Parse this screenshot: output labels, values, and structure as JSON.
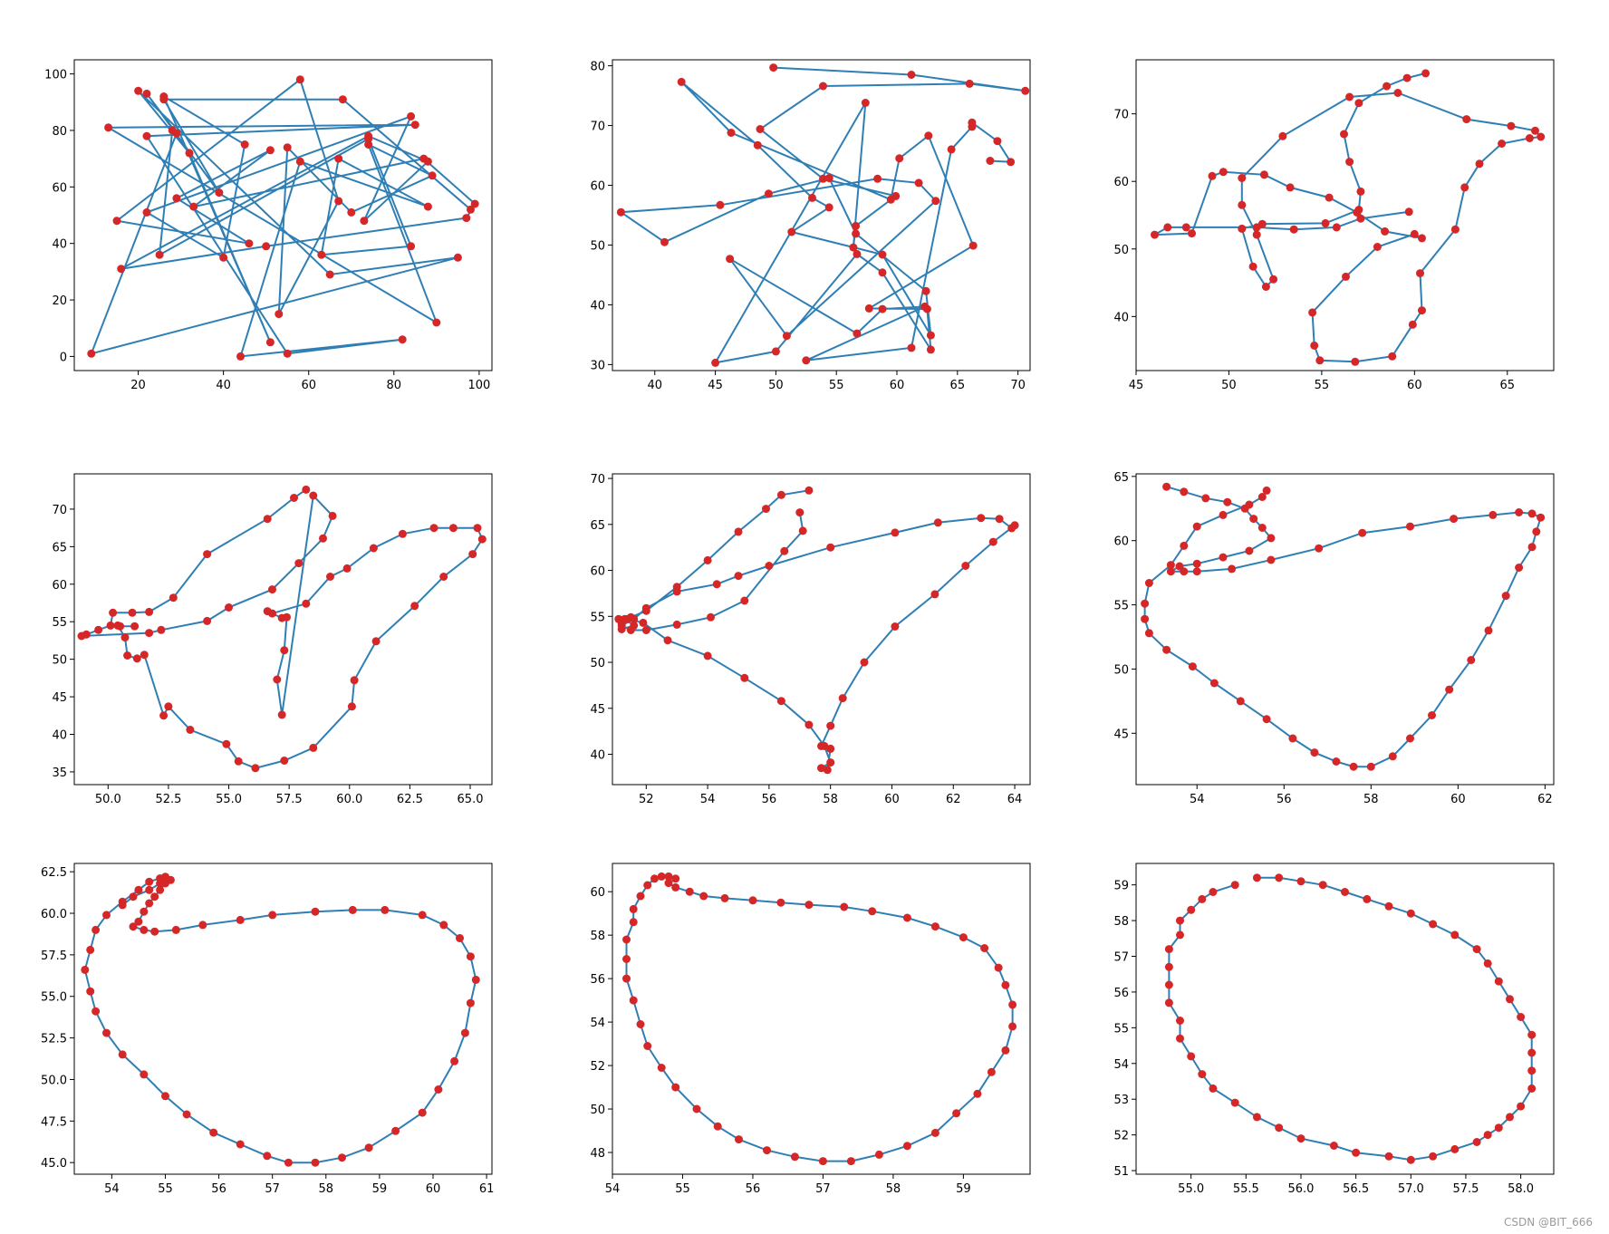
{
  "figure": {
    "watermark": "CSDN @BIT_666"
  },
  "style": {
    "line_color": "#2f7fb5",
    "point_color": "#d62728"
  },
  "chart_data": [
    {
      "type": "line",
      "xlim": [
        5,
        103
      ],
      "ylim": [
        -5,
        105
      ],
      "xticks": [
        20,
        40,
        60,
        80,
        100
      ],
      "yticks": [
        0,
        20,
        40,
        60,
        80,
        100
      ],
      "x": [
        98,
        68,
        26,
        39,
        22,
        29,
        9,
        95,
        65,
        20,
        32,
        51,
        26,
        45,
        40,
        22,
        84,
        73,
        88,
        74,
        16,
        50,
        97,
        99,
        87,
        33,
        51,
        29,
        46,
        15,
        58,
        67,
        53,
        55,
        70,
        89,
        74,
        90,
        13,
        85,
        22,
        55,
        82,
        44,
        58,
        88,
        67,
        63,
        84,
        74,
        25,
        28
      ],
      "y": [
        52,
        91,
        91,
        58,
        93,
        79,
        1,
        35,
        29,
        94,
        72,
        5,
        92,
        75,
        35,
        51,
        85,
        48,
        69,
        78,
        31,
        39,
        49,
        54,
        70,
        53,
        73,
        56,
        40,
        48,
        98,
        55,
        15,
        74,
        51,
        64,
        75,
        12,
        81,
        82,
        78,
        1,
        6,
        0,
        69,
        53,
        70,
        36,
        39,
        77,
        36,
        80
      ]
    },
    {
      "type": "line",
      "xlim": [
        36.5,
        71
      ],
      "ylim": [
        29,
        81
      ],
      "xticks": [
        40,
        45,
        50,
        55,
        60,
        65,
        70
      ],
      "yticks": [
        30,
        40,
        50,
        60,
        70,
        80
      ],
      "x": [
        49.8,
        61.2,
        70.6,
        66,
        53.9,
        48.7,
        53.9,
        59.9,
        56.6,
        56.4,
        57.4,
        45,
        50,
        56.7,
        58.8,
        62.8,
        62.5,
        57.7,
        66.3,
        62.6,
        60.2,
        59.5,
        46.3,
        42.2,
        48.5,
        53,
        54.4,
        51.3,
        58.8,
        62.8,
        62.4,
        56.6,
        54.4,
        49.4,
        40.8,
        37.2,
        45.4,
        58.4,
        61.8,
        63.2,
        50.9,
        46.2,
        56.7,
        58.8,
        62.3,
        52.5,
        61.2,
        64.5,
        66.2,
        66.2,
        68.3,
        69.4,
        67.7
      ],
      "y": [
        79.7,
        78.5,
        75.8,
        77,
        76.6,
        69.4,
        61.1,
        58.2,
        53.2,
        49.6,
        73.8,
        30.3,
        32.2,
        48.5,
        45.4,
        32.5,
        39.3,
        39.4,
        49.9,
        68.3,
        64.5,
        57.6,
        68.8,
        77.3,
        66.7,
        57.9,
        56.3,
        52.2,
        48.4,
        34.9,
        42.3,
        51.9,
        61.2,
        58.6,
        50.5,
        55.5,
        56.7,
        61.1,
        60.4,
        57.4,
        34.8,
        47.7,
        35.2,
        39.3,
        39.7,
        30.7,
        32.8,
        66,
        69.8,
        70.5,
        67.4,
        63.9,
        64.1
      ]
    },
    {
      "type": "line",
      "xlim": [
        45,
        67.5
      ],
      "ylim": [
        32,
        78
      ],
      "xticks": [
        45,
        50,
        55,
        60,
        65
      ],
      "yticks": [
        40,
        50,
        60,
        70
      ],
      "x": [
        60.6,
        59.6,
        58.5,
        57,
        56.2,
        56.5,
        57.1,
        57,
        55.2,
        51.8,
        50.7,
        51.3,
        52,
        52.4,
        51.5,
        50.7,
        50.7,
        52.9,
        56.5,
        59.1,
        62.8,
        65.2,
        66.5,
        66.8,
        66.2,
        64.7,
        63.5,
        62.7,
        62.2,
        60.3,
        60.4,
        59.9,
        58.8,
        56.8,
        54.9,
        54.6,
        54.5,
        56.3,
        58,
        60,
        60.4,
        58.4,
        56.9,
        55.4,
        53.3,
        51.9,
        49.7,
        49.1,
        48,
        46,
        46.7,
        47.7,
        51.5,
        53.5,
        55.8,
        57.1,
        59.7
      ],
      "y": [
        76,
        75.3,
        74.1,
        71.6,
        67,
        62.9,
        58.5,
        55.8,
        53.8,
        53.7,
        53,
        47.4,
        44.4,
        45.5,
        52.1,
        56.5,
        60.5,
        66.7,
        72.5,
        73.1,
        69.2,
        68.2,
        67.5,
        66.6,
        66.4,
        65.6,
        62.6,
        59.1,
        52.9,
        46.4,
        40.9,
        38.8,
        34.1,
        33.3,
        33.5,
        35.7,
        40.6,
        45.9,
        50.3,
        52.2,
        51.6,
        52.6,
        55.4,
        57.6,
        59.1,
        61,
        61.4,
        60.8,
        52.3,
        52.1,
        53.2,
        53.2,
        53.2,
        52.9,
        53.2,
        54.5,
        55.5
      ]
    },
    {
      "type": "line",
      "xlim": [
        48.6,
        65.9
      ],
      "ylim": [
        33.3,
        74.7
      ],
      "xticks": [
        50,
        52.5,
        55,
        57.5,
        60,
        62.5,
        65
      ],
      "yticks": [
        35,
        40,
        45,
        50,
        55,
        60,
        65,
        70
      ],
      "x": [
        58.2,
        57.7,
        56.6,
        54.1,
        52.7,
        51.7,
        51,
        50.2,
        50.1,
        49.6,
        49.1,
        48.9,
        51.7,
        52.2,
        54.1,
        55,
        56.8,
        57.9,
        58.9,
        59.3,
        58.5,
        57.2,
        57,
        57.3,
        57.4,
        57.2,
        56.6,
        56.8,
        58.2,
        59.2,
        59.9,
        61,
        62.2,
        63.5,
        64.3,
        65.3,
        65.5,
        65.1,
        63.9,
        62.7,
        61.1,
        60.2,
        60.1,
        58.5,
        57.3,
        56.1,
        55.4,
        54.9,
        53.4,
        52.5,
        52.3,
        51.5,
        51.2,
        50.8,
        50.7,
        50.4,
        50.5,
        51.1
      ],
      "y": [
        72.6,
        71.5,
        68.7,
        64,
        58.2,
        56.3,
        56.2,
        56.2,
        54.5,
        53.9,
        53.3,
        53.1,
        53.5,
        53.9,
        55.1,
        56.9,
        59.3,
        62.8,
        66.1,
        69.1,
        71.8,
        42.6,
        47.3,
        51.2,
        55.6,
        55.5,
        56.4,
        56.1,
        57.4,
        61,
        62.1,
        64.8,
        66.7,
        67.5,
        67.5,
        67.5,
        66,
        64,
        61,
        57.1,
        52.4,
        47.2,
        43.7,
        38.2,
        36.5,
        35.5,
        36.4,
        38.7,
        40.6,
        43.7,
        42.5,
        50.6,
        50.1,
        50.5,
        52.9,
        54.5,
        54.4,
        54.4
      ]
    },
    {
      "type": "line",
      "xlim": [
        50.9,
        64.5
      ],
      "ylim": [
        36.7,
        70.5
      ],
      "xticks": [
        52,
        54,
        56,
        58,
        60,
        62,
        64
      ],
      "yticks": [
        40,
        45,
        50,
        55,
        60,
        65,
        70
      ],
      "x": [
        57.3,
        56.4,
        55.9,
        55,
        54,
        53,
        52,
        51.5,
        51.2,
        51.2,
        51.6,
        51.3,
        51.1,
        51.2,
        51.4,
        51.9,
        52.7,
        54,
        55.2,
        56.4,
        57.3,
        57.8,
        58,
        57.7,
        57.9,
        58,
        57.7,
        58,
        58.4,
        59.1,
        60.1,
        61.4,
        62.4,
        63.3,
        64,
        63.9,
        63.5,
        62.9,
        61.5,
        60.1,
        58,
        56,
        55,
        54.3,
        53,
        52,
        51.6,
        51.2,
        51.5,
        52,
        53,
        54.1,
        55.2,
        56.5,
        57.1,
        57
      ],
      "y": [
        68.7,
        68.2,
        66.7,
        64.2,
        61.1,
        58.2,
        55.6,
        54.9,
        54.6,
        53.6,
        54,
        54.7,
        54.7,
        54.2,
        54.7,
        54.3,
        52.4,
        50.7,
        48.3,
        45.8,
        43.2,
        40.9,
        39.1,
        38.5,
        38.3,
        40.6,
        40.9,
        43.1,
        46.1,
        50,
        53.9,
        57.4,
        60.5,
        63.1,
        64.9,
        64.6,
        65.6,
        65.7,
        65.2,
        64.1,
        62.5,
        60.5,
        59.4,
        58.5,
        57.7,
        55.9,
        54.7,
        54,
        53.5,
        53.5,
        54.1,
        54.9,
        56.7,
        62.1,
        64.3,
        66.3
      ]
    },
    {
      "type": "line",
      "xlim": [
        52.6,
        62.2
      ],
      "ylim": [
        41,
        65.2
      ],
      "xticks": [
        54,
        56,
        58,
        60,
        62
      ],
      "yticks": [
        45,
        50,
        55,
        60,
        65
      ],
      "x": [
        55.6,
        55.5,
        55.2,
        54.6,
        54,
        53.7,
        53.4,
        52.9,
        52.8,
        52.8,
        52.9,
        53.3,
        53.9,
        54.4,
        55,
        55.6,
        56.2,
        56.7,
        57.2,
        57.6,
        58,
        58.5,
        58.9,
        59.4,
        59.8,
        60.3,
        60.7,
        61.1,
        61.4,
        61.7,
        61.8,
        61.9,
        61.7,
        61.4,
        60.8,
        59.9,
        58.9,
        57.8,
        56.8,
        55.7,
        54.8,
        54,
        53.7,
        53.4,
        53.6,
        54,
        54.6,
        55.2,
        55.7,
        55.5,
        55.3,
        55.1,
        54.7,
        54.2,
        53.7,
        53.3
      ],
      "y": [
        63.9,
        63.4,
        62.8,
        62,
        61.1,
        59.6,
        58.1,
        56.7,
        55.1,
        53.9,
        52.8,
        51.5,
        50.2,
        48.9,
        47.5,
        46.1,
        44.6,
        43.5,
        42.8,
        42.4,
        42.4,
        43.2,
        44.6,
        46.4,
        48.4,
        50.7,
        53,
        55.7,
        57.9,
        59.5,
        60.7,
        61.8,
        62.1,
        62.2,
        62,
        61.7,
        61.1,
        60.6,
        59.4,
        58.5,
        57.8,
        57.6,
        57.6,
        57.6,
        58,
        58.2,
        58.7,
        59.2,
        60.2,
        61,
        61.7,
        62.5,
        63,
        63.3,
        63.8,
        64.2
      ]
    },
    {
      "type": "line",
      "xlim": [
        53.3,
        61.1
      ],
      "ylim": [
        44.3,
        63
      ],
      "xticks": [
        54,
        55,
        56,
        57,
        58,
        59,
        60,
        61
      ],
      "yticks": [
        45,
        47.5,
        50,
        52.5,
        55,
        57.5,
        60,
        62.5
      ],
      "x": [
        55,
        55,
        54.9,
        54.8,
        54.7,
        54.6,
        54.5,
        54.4,
        54.6,
        54.8,
        55.2,
        55.7,
        56.4,
        57,
        57.8,
        58.5,
        59.1,
        59.8,
        60.2,
        60.5,
        60.7,
        60.8,
        60.7,
        60.6,
        60.4,
        60.1,
        59.8,
        59.3,
        58.8,
        58.3,
        57.8,
        57.3,
        56.9,
        56.4,
        55.9,
        55.4,
        55,
        54.6,
        54.2,
        53.9,
        53.7,
        53.6,
        53.5,
        53.6,
        53.7,
        53.9,
        54.2,
        54.5,
        54.7,
        54.9,
        55,
        55.1,
        54.9,
        54.7,
        54.4,
        54.2
      ],
      "y": [
        62.1,
        61.8,
        61.4,
        61,
        60.6,
        60.1,
        59.5,
        59.2,
        59,
        58.9,
        59,
        59.3,
        59.6,
        59.9,
        60.1,
        60.2,
        60.2,
        59.9,
        59.3,
        58.5,
        57.4,
        56,
        54.6,
        52.8,
        51.1,
        49.4,
        48,
        46.9,
        45.9,
        45.3,
        45,
        45,
        45.4,
        46.1,
        46.8,
        47.9,
        49,
        50.3,
        51.5,
        52.8,
        54.1,
        55.3,
        56.6,
        57.8,
        59,
        59.9,
        60.7,
        61.4,
        61.9,
        62.1,
        62.2,
        62,
        61.8,
        61.4,
        61,
        60.5
      ]
    },
    {
      "type": "line",
      "xlim": [
        54,
        59.95
      ],
      "ylim": [
        47,
        61.3
      ],
      "xticks": [
        54,
        55,
        56,
        57,
        58,
        59
      ],
      "yticks": [
        48,
        50,
        52,
        54,
        56,
        58,
        60
      ],
      "x": [
        54.7,
        54.6,
        54.5,
        54.4,
        54.3,
        54.3,
        54.2,
        54.2,
        54.2,
        54.3,
        54.4,
        54.5,
        54.7,
        54.9,
        55.2,
        55.5,
        55.8,
        56.2,
        56.6,
        57,
        57.4,
        57.8,
        58.2,
        58.6,
        58.9,
        59.2,
        59.4,
        59.6,
        59.7,
        59.7,
        59.6,
        59.5,
        59.3,
        59,
        58.6,
        58.2,
        57.7,
        57.3,
        56.8,
        56.4,
        56,
        55.6,
        55.3,
        55.1,
        54.9,
        54.8,
        54.9,
        54.8
      ],
      "y": [
        60.7,
        60.6,
        60.3,
        59.8,
        59.2,
        58.6,
        57.8,
        56.9,
        56,
        55,
        53.9,
        52.9,
        51.9,
        51,
        50,
        49.2,
        48.6,
        48.1,
        47.8,
        47.6,
        47.6,
        47.9,
        48.3,
        48.9,
        49.8,
        50.7,
        51.7,
        52.7,
        53.8,
        54.8,
        55.7,
        56.5,
        57.4,
        57.9,
        58.4,
        58.8,
        59.1,
        59.3,
        59.4,
        59.5,
        59.6,
        59.7,
        59.8,
        60,
        60.2,
        60.4,
        60.6,
        60.7
      ]
    },
    {
      "type": "line",
      "xlim": [
        54.5,
        58.3
      ],
      "ylim": [
        50.9,
        59.6
      ],
      "xticks": [
        55,
        55.5,
        56,
        56.5,
        57,
        57.5,
        58
      ],
      "yticks": [
        51,
        52,
        53,
        54,
        55,
        56,
        57,
        58,
        59
      ],
      "x": [
        55.6,
        55.8,
        56,
        56.2,
        56.4,
        56.6,
        56.8,
        57,
        57.2,
        57.4,
        57.6,
        57.7,
        57.8,
        57.9,
        58,
        58.1,
        58.1,
        58.1,
        58.1,
        58,
        57.9,
        57.8,
        57.7,
        57.6,
        57.4,
        57.2,
        57,
        56.8,
        56.5,
        56.3,
        56,
        55.8,
        55.6,
        55.4,
        55.2,
        55.1,
        55,
        54.9,
        54.9,
        54.8,
        54.8,
        54.8,
        54.8,
        54.9,
        54.9,
        55,
        55.1,
        55.2,
        55.4
      ],
      "y": [
        59.2,
        59.2,
        59.1,
        59,
        58.8,
        58.6,
        58.4,
        58.2,
        57.9,
        57.6,
        57.2,
        56.8,
        56.3,
        55.8,
        55.3,
        54.8,
        54.3,
        53.8,
        53.3,
        52.8,
        52.5,
        52.2,
        52,
        51.8,
        51.6,
        51.4,
        51.3,
        51.4,
        51.5,
        51.7,
        51.9,
        52.2,
        52.5,
        52.9,
        53.3,
        53.7,
        54.2,
        54.7,
        55.2,
        55.7,
        56.2,
        56.7,
        57.2,
        57.6,
        58,
        58.3,
        58.6,
        58.8,
        59
      ]
    }
  ]
}
